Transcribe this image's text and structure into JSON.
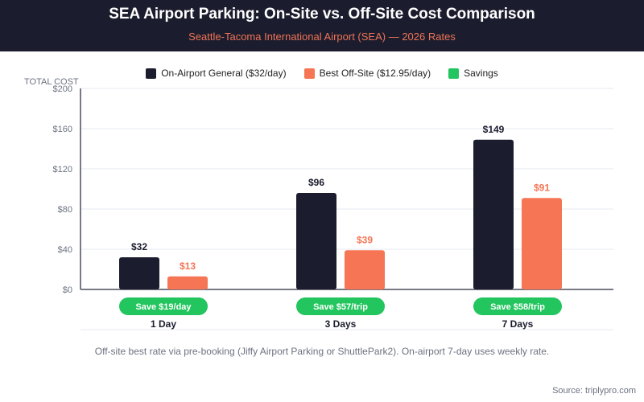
{
  "header": {
    "title": "SEA Airport Parking: On-Site vs. Off-Site Cost Comparison",
    "subtitle": "Seattle-Tacoma International Airport (SEA) — 2026 Rates"
  },
  "footnote": "Off-site best rate via pre-booking (Jiffy Airport Parking or ShuttlePark2). On-airport 7-day uses weekly rate.",
  "source": "Source: triplypro.com",
  "chart_data": {
    "type": "bar",
    "title": "SEA Airport Parking: On-Site vs. Off-Site Cost Comparison",
    "subtitle": "Seattle-Tacoma International Airport (SEA) — 2026 Rates",
    "xlabel": "",
    "ylabel": "TOTAL COST",
    "ylim": [
      0,
      200
    ],
    "yticks": [
      0,
      40,
      80,
      120,
      160,
      200
    ],
    "ytick_labels": [
      "$0",
      "$40",
      "$80",
      "$120",
      "$160",
      "$200"
    ],
    "grid": true,
    "legend_position": "top-center",
    "categories": [
      "1 Day",
      "3 Days",
      "7 Days"
    ],
    "series": [
      {
        "name": "On-Airport General ($32/day)",
        "color": "#1b1d2e",
        "label_color": "#1b1d2e",
        "values": [
          32,
          96,
          149
        ],
        "labels": [
          "$32",
          "$96",
          "$149"
        ]
      },
      {
        "name": "Best Off-Site ($12.95/day)",
        "color": "#f57555",
        "label_color": "#f57555",
        "values": [
          13,
          39,
          91
        ],
        "labels": [
          "$13",
          "$39",
          "$91"
        ]
      }
    ],
    "legend": [
      {
        "name": "On-Airport General ($32/day)",
        "color": "#1b1d2e"
      },
      {
        "name": "Best Off-Site ($12.95/day)",
        "color": "#f57555"
      },
      {
        "name": "Savings",
        "color": "#22c55e"
      }
    ],
    "savings": {
      "color": "#22c55e",
      "labels": [
        "Save $19/day",
        "Save $57/trip",
        "Save $58/trip"
      ]
    }
  }
}
